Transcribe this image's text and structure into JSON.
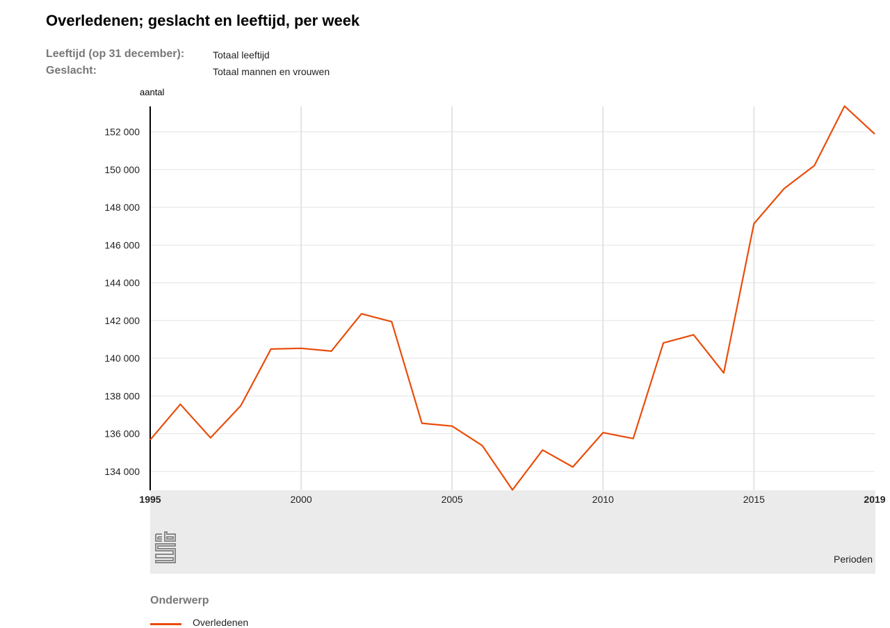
{
  "header": {
    "title": "Overledenen; geslacht en leeftijd, per week",
    "filters": [
      {
        "label": "Leeftijd (op 31 december):",
        "value": "Totaal leeftijd"
      },
      {
        "label": "Geslacht:",
        "value": "Totaal mannen en vrouwen"
      }
    ]
  },
  "legend": {
    "title": "Onderwerp",
    "items": [
      {
        "label": "Overledenen"
      }
    ]
  },
  "colors": {
    "series": "#e94c0a",
    "grid": "#e3e3e3",
    "band": "#ebebeb"
  },
  "chart_data": {
    "type": "line",
    "title": "Overledenen; geslacht en leeftijd, per week",
    "xlabel": "Perioden",
    "ylabel": "aantal",
    "x": [
      1995,
      1996,
      1997,
      1998,
      1999,
      2000,
      2001,
      2002,
      2003,
      2004,
      2005,
      2006,
      2007,
      2008,
      2009,
      2010,
      2011,
      2012,
      2013,
      2014,
      2015,
      2016,
      2017,
      2018,
      2019
    ],
    "series": [
      {
        "name": "Overledenen",
        "values": [
          135675,
          137561,
          135783,
          137482,
          140487,
          140527,
          140377,
          142355,
          141936,
          136553,
          136402,
          135372,
          133022,
          135136,
          134235,
          136058,
          135741,
          140813,
          141245,
          139223,
          147134,
          148997,
          150214,
          153363,
          151885
        ]
      }
    ],
    "xlim": [
      1995,
      2019
    ],
    "ylim": [
      133000,
      153350
    ],
    "xticks": [
      "1995",
      "2000",
      "2005",
      "2010",
      "2015",
      "2019"
    ],
    "yticks": [
      "134 000",
      "136 000",
      "138 000",
      "140 000",
      "142 000",
      "144 000",
      "146 000",
      "148 000",
      "150 000",
      "152 000"
    ],
    "ytick_values": [
      134000,
      136000,
      138000,
      140000,
      142000,
      144000,
      146000,
      148000,
      150000,
      152000
    ],
    "grid": true,
    "legend": "bottom-left"
  }
}
